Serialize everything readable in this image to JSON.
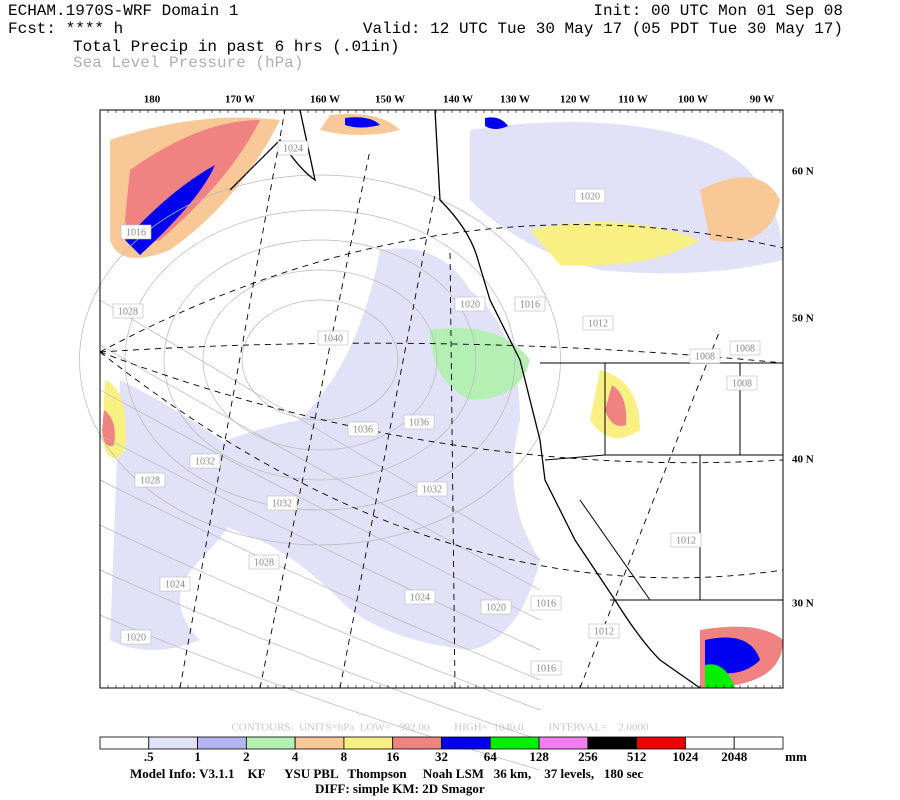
{
  "header": {
    "title": "ECHAM.1970S-WRF Domain 1",
    "fcst": "Fcst: **** h",
    "init": "Init: 00 UTC Mon 01 Sep 08",
    "valid": "Valid: 12 UTC Tue 30 May 17 (05 PDT Tue 30 May 17)",
    "field_primary": "Total Precip in past 6 hrs (.01in)",
    "field_secondary": "Sea Level Pressure (hPa)"
  },
  "map": {
    "lon_labels": [
      "180",
      "170 W",
      "160 W",
      "150 W",
      "140 W",
      "130 W",
      "120 W",
      "110 W",
      "100 W",
      "90 W"
    ],
    "lat_labels": [
      "60 N",
      "50 N",
      "40 N",
      "30 N"
    ],
    "contour_labels": [
      "1024",
      "1016",
      "1028",
      "1040",
      "1036",
      "1032",
      "1028",
      "1032",
      "1028",
      "1024",
      "1020",
      "1024",
      "1020",
      "1016",
      "1012",
      "1016",
      "1036",
      "1032",
      "1016",
      "1012",
      "1020",
      "1012",
      "1008",
      "1008",
      "1008",
      "1020"
    ]
  },
  "contour_info": "CONTOURS:  UNITS=hPa  LOW=   992.00         HIGH=  1040.0         INTERVAL=    2.0000",
  "legend": {
    "colors": [
      "#ffffff",
      "#e1e1f8",
      "#b4b4f0",
      "#b4f0b4",
      "#f8c896",
      "#f8f082",
      "#f08282",
      "#0000f0",
      "#00f000",
      "#f080f0",
      "#000000",
      "#f00000",
      "#ffffff",
      "#ffffff"
    ],
    "labels": [
      ".5",
      "1",
      "2",
      "4",
      "8",
      "16",
      "32",
      "64",
      "128",
      "256",
      "512",
      "1024",
      "2048"
    ],
    "unit": "mm"
  },
  "footer": {
    "model_info": "Model Info: V3.1.1    KF      YSU PBL   Thompson     Noah LSM   36 km,    37 levels,   180 sec",
    "diff": "DIFF: simple KM: 2D Smagor"
  }
}
